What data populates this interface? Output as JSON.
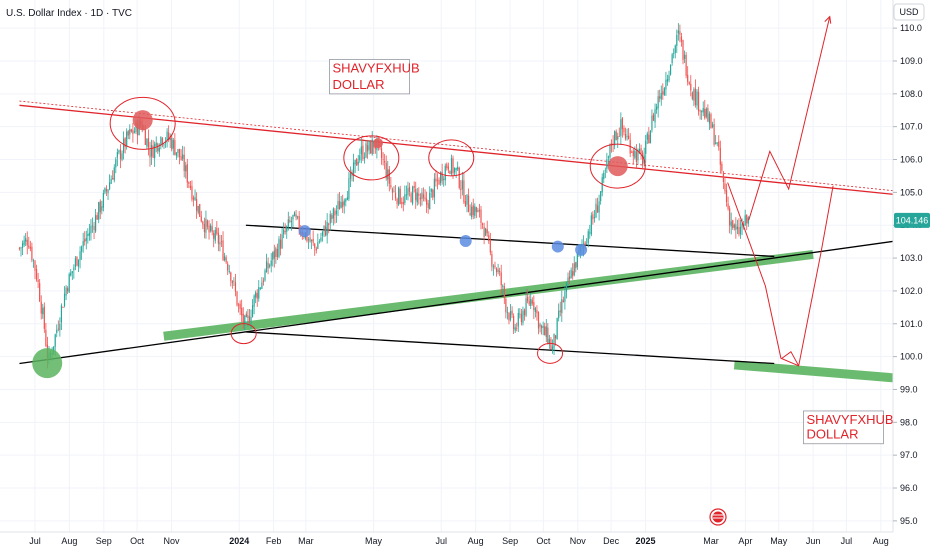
{
  "header": {
    "title": "U.S. Dollar Index · 1D · TVC"
  },
  "chart_data": {
    "type": "candlestick",
    "currency": "USD",
    "yaxis_ticks": [
      110.0,
      109.0,
      108.0,
      107.0,
      106.0,
      105.0,
      104.0,
      103.0,
      102.0,
      101.0,
      100.0,
      99.0,
      98.0,
      97.0,
      96.0,
      95.0
    ],
    "ylim": [
      94.85,
      110.4
    ],
    "last_price": "104.146",
    "last_price_value": 104.146,
    "xaxis_labels": [
      {
        "label": "Jul",
        "day": 0
      },
      {
        "label": "Aug",
        "day": 31
      },
      {
        "label": "Sep",
        "day": 62
      },
      {
        "label": "Oct",
        "day": 92
      },
      {
        "label": "Nov",
        "day": 123
      },
      {
        "label": "2024",
        "day": 184,
        "bold": true
      },
      {
        "label": "Feb",
        "day": 215
      },
      {
        "label": "Mar",
        "day": 244
      },
      {
        "label": "May",
        "day": 305
      },
      {
        "label": "Jul",
        "day": 366
      },
      {
        "label": "Aug",
        "day": 397
      },
      {
        "label": "Sep",
        "day": 428
      },
      {
        "label": "Oct",
        "day": 458
      },
      {
        "label": "Nov",
        "day": 489
      },
      {
        "label": "Dec",
        "day": 519
      },
      {
        "label": "2025",
        "day": 550,
        "bold": true
      },
      {
        "label": "Mar",
        "day": 609
      },
      {
        "label": "Apr",
        "day": 640
      },
      {
        "label": "May",
        "day": 670
      },
      {
        "label": "Jun",
        "day": 701
      },
      {
        "label": "Jul",
        "day": 731
      },
      {
        "label": "Aug",
        "day": 762
      }
    ],
    "price_path": [
      [
        -14,
        103.3
      ],
      [
        -6,
        103.6
      ],
      [
        2,
        102.4
      ],
      [
        8,
        101.0
      ],
      [
        12,
        99.8
      ],
      [
        18,
        100.6
      ],
      [
        28,
        102.1
      ],
      [
        40,
        103.2
      ],
      [
        52,
        104.0
      ],
      [
        64,
        105.0
      ],
      [
        74,
        106.0
      ],
      [
        84,
        106.7
      ],
      [
        96,
        107.1
      ],
      [
        104,
        106.2
      ],
      [
        114,
        106.7
      ],
      [
        122,
        106.6
      ],
      [
        132,
        106.0
      ],
      [
        140,
        105.2
      ],
      [
        148,
        104.4
      ],
      [
        156,
        103.8
      ],
      [
        166,
        103.5
      ],
      [
        176,
        102.6
      ],
      [
        184,
        101.4
      ],
      [
        190,
        100.9
      ],
      [
        198,
        101.8
      ],
      [
        208,
        102.6
      ],
      [
        220,
        103.4
      ],
      [
        232,
        104.2
      ],
      [
        242,
        103.8
      ],
      [
        252,
        103.3
      ],
      [
        262,
        103.9
      ],
      [
        274,
        104.6
      ],
      [
        284,
        105.3
      ],
      [
        292,
        106.2
      ],
      [
        300,
        106.3
      ],
      [
        306,
        106.5
      ],
      [
        314,
        105.9
      ],
      [
        322,
        105.0
      ],
      [
        332,
        104.8
      ],
      [
        342,
        105.0
      ],
      [
        352,
        104.6
      ],
      [
        362,
        105.3
      ],
      [
        372,
        105.9
      ],
      [
        380,
        105.6
      ],
      [
        390,
        104.6
      ],
      [
        398,
        104.4
      ],
      [
        404,
        104.0
      ],
      [
        410,
        103.1
      ],
      [
        418,
        102.5
      ],
      [
        424,
        101.6
      ],
      [
        432,
        100.8
      ],
      [
        440,
        101.4
      ],
      [
        448,
        101.8
      ],
      [
        456,
        100.8
      ],
      [
        462,
        100.6
      ],
      [
        466,
        100.2
      ],
      [
        474,
        101.5
      ],
      [
        484,
        102.6
      ],
      [
        496,
        103.6
      ],
      [
        506,
        104.5
      ],
      [
        514,
        105.6
      ],
      [
        520,
        106.6
      ],
      [
        528,
        107.0
      ],
      [
        534,
        106.6
      ],
      [
        540,
        106.2
      ],
      [
        548,
        106.0
      ],
      [
        556,
        107.2
      ],
      [
        562,
        107.9
      ],
      [
        568,
        108.4
      ],
      [
        574,
        109.2
      ],
      [
        580,
        109.8
      ],
      [
        586,
        108.9
      ],
      [
        592,
        108.1
      ],
      [
        600,
        107.6
      ],
      [
        608,
        107.1
      ],
      [
        614,
        106.5
      ],
      [
        620,
        105.3
      ],
      [
        626,
        104.2
      ],
      [
        632,
        103.7
      ],
      [
        638,
        104.0
      ],
      [
        643,
        104.15
      ]
    ],
    "series": [
      {
        "name": "",
        "type": "trendline",
        "color": "#e0242b",
        "points": [
          [
            -14,
            107.65
          ],
          [
            782,
            104.91
          ]
        ]
      },
      {
        "name": "",
        "type": "trendline-dashed",
        "color": "#e0242b",
        "points": [
          [
            -14,
            107.78
          ],
          [
            782,
            105.02
          ]
        ]
      },
      {
        "name": "",
        "type": "trendline",
        "color": "#000000",
        "points": [
          [
            -14,
            99.79
          ],
          [
            782,
            103.55
          ]
        ]
      },
      {
        "name": "",
        "type": "trendline",
        "color": "#000000",
        "points": [
          [
            190,
            104.0
          ],
          [
            666,
            103.05
          ]
        ]
      },
      {
        "name": "",
        "type": "trendline",
        "color": "#000000",
        "points": [
          [
            190,
            100.75
          ],
          [
            666,
            99.79
          ]
        ]
      },
      {
        "name": "",
        "type": "zone",
        "color": "#5ab45f",
        "points": [
          [
            116,
            100.62
          ],
          [
            701,
            103.11
          ]
        ]
      },
      {
        "name": "",
        "type": "zone",
        "color": "#5ab45f",
        "points": [
          [
            630,
            99.75
          ],
          [
            782,
            99.33
          ]
        ]
      },
      {
        "name": "",
        "type": "projection",
        "color": "#e0242b",
        "points": [
          [
            643,
            104.15
          ],
          [
            662,
            106.25
          ],
          [
            679,
            105.1
          ],
          [
            716,
            110.35
          ]
        ]
      },
      {
        "name": "",
        "type": "projection",
        "color": "#e0242b",
        "points": [
          [
            624,
            105.3
          ],
          [
            658,
            102.15
          ],
          [
            672,
            99.95
          ],
          [
            688,
            99.72
          ],
          [
            708,
            103.15
          ],
          [
            719,
            105.2
          ]
        ]
      },
      {
        "name": "",
        "type": "projection",
        "color": "#e0242b",
        "points": [
          [
            688,
            99.72
          ],
          [
            681,
            100.15
          ],
          [
            673,
            99.95
          ]
        ]
      }
    ],
    "annotations": [
      {
        "text": "SHAVYFXHUB",
        "day": 268,
        "price": 108.65
      },
      {
        "text": "DOLLAR",
        "day": 268,
        "price": 108.15
      },
      {
        "text": "SHAVYFXHUB",
        "day": 695,
        "price": 97.95
      },
      {
        "text": "DOLLAR",
        "day": 695,
        "price": 97.5
      }
    ],
    "markers": [
      {
        "kind": "filled",
        "color": "#e05a5a",
        "day": 97,
        "price": 107.2,
        "r": 10
      },
      {
        "kind": "filled",
        "color": "#e05a5a",
        "day": 525,
        "price": 105.8,
        "r": 10
      },
      {
        "kind": "filled",
        "color": "#e05a5a",
        "day": 309,
        "price": 106.5,
        "r": 5
      },
      {
        "kind": "filled",
        "color": "#5a8ce0",
        "day": 243,
        "price": 103.82,
        "r": 6
      },
      {
        "kind": "filled",
        "color": "#5a8ce0",
        "day": 388,
        "price": 103.52,
        "r": 6
      },
      {
        "kind": "filled",
        "color": "#5a8ce0",
        "day": 471,
        "price": 103.35,
        "r": 6
      },
      {
        "kind": "filled",
        "color": "#5a8ce0",
        "day": 492,
        "price": 103.25,
        "r": 6
      },
      {
        "kind": "filled",
        "color": "#5ab45f",
        "day": 11,
        "price": 99.8,
        "r": 15
      },
      {
        "kind": "circle",
        "color": "#e0242b",
        "day": 97,
        "price": 107.1,
        "r": 26
      },
      {
        "kind": "circle",
        "color": "#e0242b",
        "day": 303,
        "price": 106.05,
        "r": 22
      },
      {
        "kind": "circle",
        "color": "#e0242b",
        "day": 375,
        "price": 106.05,
        "r": 18
      },
      {
        "kind": "circle",
        "color": "#e0242b",
        "day": 525,
        "price": 105.8,
        "r": 22
      },
      {
        "kind": "circle",
        "color": "#e0242b",
        "day": 188,
        "price": 100.7,
        "r": 10
      },
      {
        "kind": "circle",
        "color": "#e0242b",
        "day": 464,
        "price": 100.1,
        "r": 10
      }
    ]
  }
}
